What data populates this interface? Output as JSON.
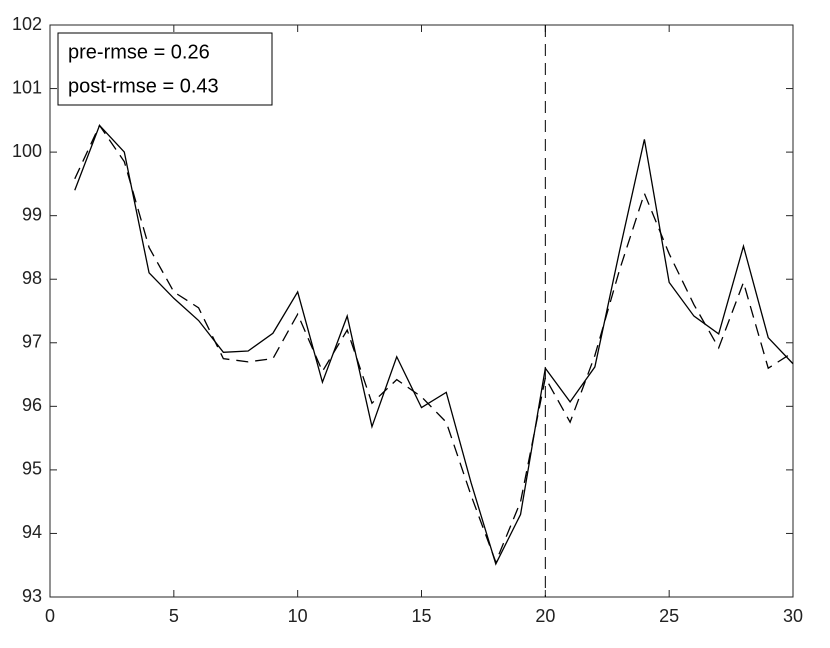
{
  "chart_data": {
    "type": "line",
    "x": [
      1,
      2,
      3,
      4,
      5,
      6,
      7,
      8,
      9,
      10,
      11,
      12,
      13,
      14,
      15,
      16,
      17,
      18,
      19,
      20,
      21,
      22,
      23,
      24,
      25,
      26,
      27,
      28,
      29,
      30
    ],
    "series": [
      {
        "color": "#000000",
        "linestyle": "solid",
        "values": [
          99.4,
          100.42,
          100.0,
          98.1,
          97.7,
          97.35,
          96.85,
          96.87,
          97.15,
          97.8,
          96.38,
          97.42,
          95.68,
          96.78,
          95.98,
          96.22,
          94.8,
          93.52,
          94.3,
          96.6,
          96.07,
          96.62,
          98.45,
          100.2,
          97.95,
          97.42,
          97.14,
          98.52,
          97.08,
          96.67
        ]
      },
      {
        "color": "#000000",
        "linestyle": "dashed",
        "values": [
          99.58,
          100.42,
          99.85,
          98.5,
          97.8,
          97.55,
          96.75,
          96.7,
          96.75,
          97.45,
          96.55,
          97.2,
          96.05,
          96.42,
          96.15,
          95.75,
          94.6,
          93.55,
          94.5,
          96.45,
          95.75,
          96.8,
          98.15,
          99.35,
          98.4,
          97.6,
          96.92,
          97.95,
          96.6,
          96.85
        ]
      }
    ],
    "vline": 20,
    "annotations": [
      "pre-rmse = 0.26",
      "post-rmse = 0.43"
    ],
    "xlim": [
      0,
      30
    ],
    "xticks": [
      0,
      5,
      10,
      15,
      20,
      25,
      30
    ],
    "ylim": [
      93,
      102
    ],
    "yticks": [
      93,
      94,
      95,
      96,
      97,
      98,
      99,
      100,
      101,
      102
    ],
    "grid": false
  }
}
